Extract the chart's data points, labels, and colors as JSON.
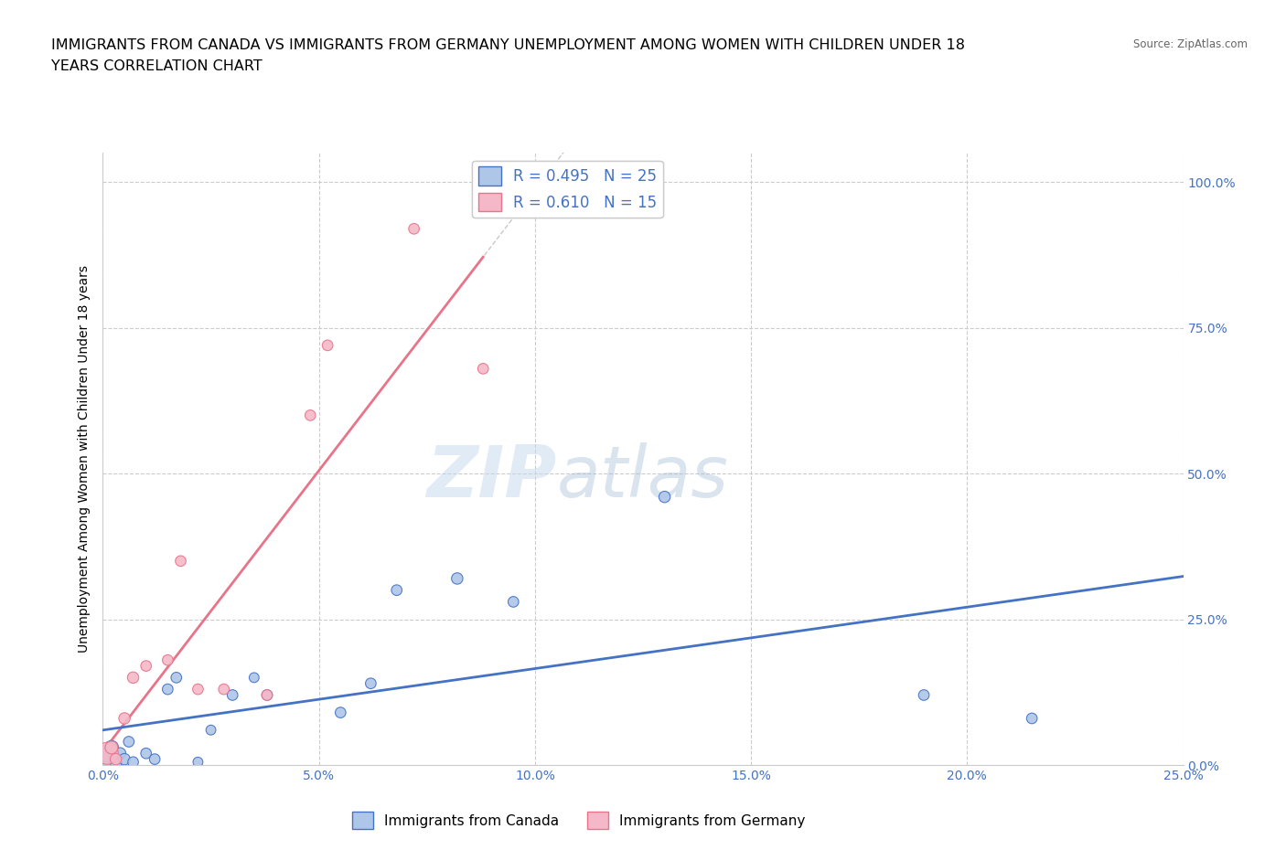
{
  "title_line1": "IMMIGRANTS FROM CANADA VS IMMIGRANTS FROM GERMANY UNEMPLOYMENT AMONG WOMEN WITH CHILDREN UNDER 18",
  "title_line2": "YEARS CORRELATION CHART",
  "source": "Source: ZipAtlas.com",
  "ylabel": "Unemployment Among Women with Children Under 18 years",
  "xlim": [
    0.0,
    0.25
  ],
  "ylim": [
    0.0,
    1.05
  ],
  "xticks": [
    0.0,
    0.05,
    0.1,
    0.15,
    0.2,
    0.25
  ],
  "yticks": [
    0.0,
    0.25,
    0.5,
    0.75,
    1.0
  ],
  "xtick_labels": [
    "0.0%",
    "5.0%",
    "10.0%",
    "15.0%",
    "20.0%",
    "25.0%"
  ],
  "ytick_labels": [
    "0.0%",
    "25.0%",
    "50.0%",
    "75.0%",
    "100.0%"
  ],
  "canada_x": [
    0.001,
    0.001,
    0.002,
    0.003,
    0.004,
    0.005,
    0.006,
    0.007,
    0.01,
    0.012,
    0.015,
    0.017,
    0.022,
    0.025,
    0.03,
    0.035,
    0.038,
    0.055,
    0.062,
    0.068,
    0.082,
    0.095,
    0.13,
    0.19,
    0.215
  ],
  "canada_y": [
    0.005,
    0.02,
    0.03,
    0.005,
    0.02,
    0.01,
    0.04,
    0.005,
    0.02,
    0.01,
    0.13,
    0.15,
    0.005,
    0.06,
    0.12,
    0.15,
    0.12,
    0.09,
    0.14,
    0.3,
    0.32,
    0.28,
    0.46,
    0.12,
    0.08
  ],
  "canada_size": [
    350,
    180,
    120,
    90,
    80,
    80,
    70,
    70,
    70,
    70,
    70,
    70,
    60,
    60,
    70,
    60,
    70,
    70,
    70,
    70,
    80,
    70,
    80,
    70,
    70
  ],
  "germany_x": [
    0.001,
    0.002,
    0.003,
    0.005,
    0.007,
    0.01,
    0.015,
    0.018,
    0.022,
    0.028,
    0.038,
    0.048,
    0.052,
    0.072,
    0.088
  ],
  "germany_y": [
    0.02,
    0.03,
    0.01,
    0.08,
    0.15,
    0.17,
    0.18,
    0.35,
    0.13,
    0.13,
    0.12,
    0.6,
    0.72,
    0.92,
    0.68
  ],
  "germany_size": [
    300,
    100,
    80,
    80,
    80,
    70,
    70,
    70,
    70,
    70,
    70,
    70,
    70,
    70,
    70
  ],
  "canada_color": "#aec6e8",
  "germany_color": "#f4b8c8",
  "canada_line_color": "#4472c4",
  "germany_line_color": "#e8748a",
  "canada_R": 0.495,
  "canada_N": 25,
  "germany_R": 0.61,
  "germany_N": 15,
  "legend_canada_label": "Immigrants from Canada",
  "legend_germany_label": "Immigrants from Germany",
  "watermark_zip": "ZIP",
  "watermark_atlas": "atlas",
  "background_color": "#ffffff",
  "grid_color": "#cccccc",
  "title_fontsize": 11.5,
  "axis_label_fontsize": 10,
  "tick_fontsize": 10,
  "tick_color": "#4472c4",
  "legend_fontsize": 12
}
